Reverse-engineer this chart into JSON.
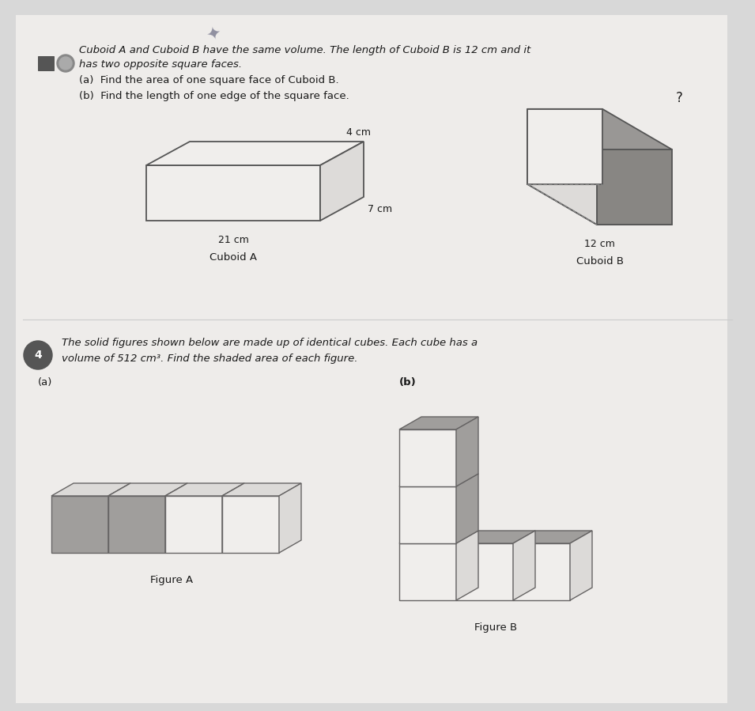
{
  "bg_color": "#d8d8d8",
  "paper_color": "#eeecea",
  "text_color": "#1a1a1a",
  "title3_line1": "Cuboid A and Cuboid B have the same volume. The length of Cuboid B is 12 cm and it",
  "title3_line2": "has two opposite square faces.",
  "q3a": "(a)  Find the area of one square face of Cuboid B.",
  "q3b": "(b)  Find the length of one edge of the square face.",
  "label_21cm": "21 cm",
  "label_7cm": "7 cm",
  "label_4cm": "4 cm",
  "label_12cm": "12 cm",
  "label_q": "?",
  "label_cuboidA": "Cuboid A",
  "label_cuboidB": "Cuboid B",
  "problem4_text1": "The solid figures shown below are made up of identical cubes. Each cube has a",
  "problem4_text2": "volume of 512 cm³. Find the shaded area of each figure.",
  "label_a": "(a)",
  "label_b": "(b)",
  "label_figA": "Figure A",
  "label_figB": "Figure B",
  "cuboid_line": "#555555",
  "face_white": "#f0eeec",
  "face_light": "#dddbd9",
  "face_gray": "#999795",
  "face_darkgray": "#888683",
  "cube_line": "#666464",
  "cube_white": "#f0eeec",
  "cube_light": "#dcdad8",
  "cube_gray": "#a09e9c",
  "cube_darkgray": "#888684"
}
